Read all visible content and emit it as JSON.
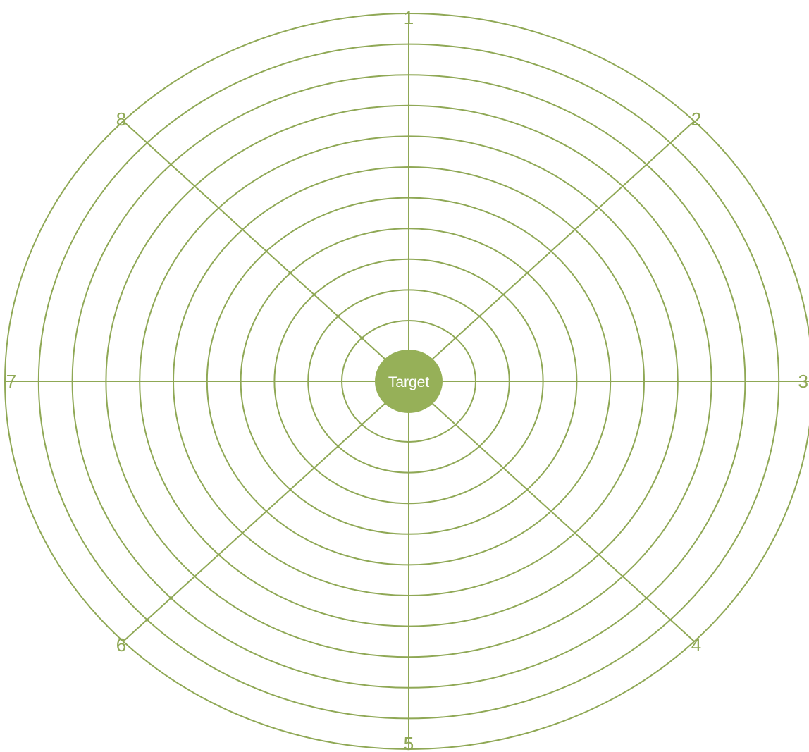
{
  "diagram": {
    "center_label": "Target",
    "ring_count": 11,
    "spoke_labels": [
      "1",
      "2",
      "3",
      "4",
      "5",
      "6",
      "7",
      "8"
    ],
    "colors": {
      "line": "#8fa855",
      "center_fill": "#96b058",
      "center_text": "#ffffff",
      "label": "#8fa855"
    }
  }
}
